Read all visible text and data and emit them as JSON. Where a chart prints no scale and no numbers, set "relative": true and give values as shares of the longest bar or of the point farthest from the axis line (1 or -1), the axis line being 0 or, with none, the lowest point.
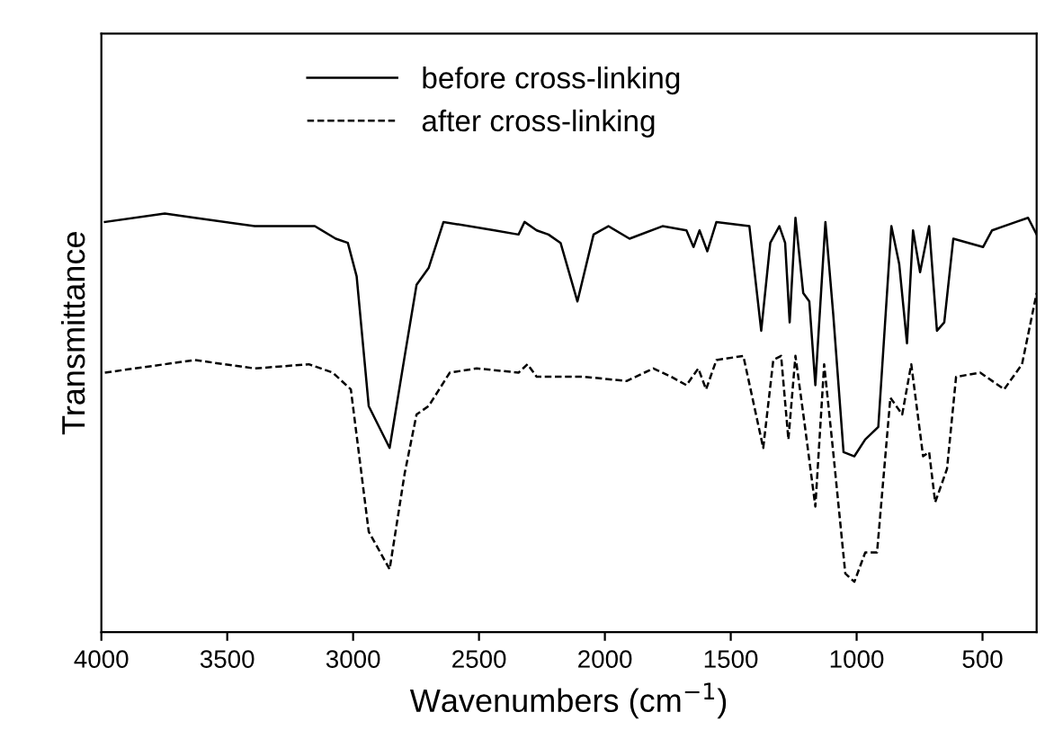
{
  "chart_data": {
    "type": "line",
    "xlabel": "Wavenumbers (cm$^{−1}$)",
    "ylabel": "Transmittance",
    "relative": true,
    "xlim": [
      4000,
      285
    ],
    "xticks": [
      4000,
      3500,
      3000,
      2500,
      2000,
      1500,
      1000,
      500
    ],
    "legend": "top",
    "grid": false,
    "marker": "none",
    "series": [
      {
        "name": "before cross-linking",
        "color": "#000000",
        "line_style": "solid",
        "x": [
          3986,
          3748,
          3629,
          3391,
          3152,
          3069,
          3021,
          2986,
          2938,
          2855,
          2795,
          2748,
          2700,
          2641,
          2438,
          2343,
          2319,
          2271,
          2224,
          2176,
          2109,
          2045,
          1986,
          1902,
          1771,
          1676,
          1648,
          1624,
          1593,
          1557,
          1426,
          1379,
          1343,
          1307,
          1284,
          1266,
          1243,
          1212,
          1188,
          1164,
          1124,
          1093,
          1052,
          1009,
          966,
          914,
          862,
          831,
          800,
          776,
          748,
          712,
          681,
          652,
          616,
          498,
          462,
          367,
          319,
          285
        ],
        "values": [
          0.98,
          1.0,
          0.99,
          0.97,
          0.97,
          0.94,
          0.93,
          0.85,
          0.54,
          0.44,
          0.66,
          0.83,
          0.87,
          0.98,
          0.96,
          0.95,
          0.98,
          0.96,
          0.95,
          0.93,
          0.79,
          0.95,
          0.97,
          0.94,
          0.97,
          0.96,
          0.92,
          0.96,
          0.91,
          0.98,
          0.97,
          0.72,
          0.93,
          0.97,
          0.93,
          0.74,
          0.99,
          0.81,
          0.79,
          0.59,
          0.98,
          0.76,
          0.43,
          0.42,
          0.46,
          0.49,
          0.97,
          0.88,
          0.69,
          0.96,
          0.86,
          0.97,
          0.72,
          0.74,
          0.94,
          0.92,
          0.96,
          0.98,
          0.99,
          0.95
        ]
      },
      {
        "name": "after cross-linking",
        "color": "#000000",
        "line_style": "dashed",
        "x": [
          3986,
          3629,
          3391,
          3176,
          3081,
          3009,
          2938,
          2855,
          2795,
          2748,
          2700,
          2616,
          2509,
          2343,
          2307,
          2271,
          2081,
          1914,
          1807,
          1736,
          1676,
          1629,
          1598,
          1557,
          1450,
          1371,
          1331,
          1300,
          1271,
          1243,
          1205,
          1164,
          1129,
          1093,
          1045,
          1009,
          966,
          919,
          866,
          819,
          783,
          736,
          712,
          688,
          641,
          605,
          509,
          414,
          343,
          285
        ],
        "values": [
          0.62,
          0.65,
          0.63,
          0.64,
          0.62,
          0.58,
          0.24,
          0.15,
          0.38,
          0.52,
          0.54,
          0.62,
          0.63,
          0.62,
          0.64,
          0.61,
          0.61,
          0.6,
          0.63,
          0.61,
          0.59,
          0.63,
          0.58,
          0.65,
          0.66,
          0.44,
          0.65,
          0.66,
          0.46,
          0.66,
          0.49,
          0.3,
          0.64,
          0.43,
          0.14,
          0.12,
          0.19,
          0.19,
          0.56,
          0.52,
          0.64,
          0.42,
          0.43,
          0.31,
          0.39,
          0.61,
          0.62,
          0.58,
          0.64,
          0.81
        ]
      }
    ]
  }
}
